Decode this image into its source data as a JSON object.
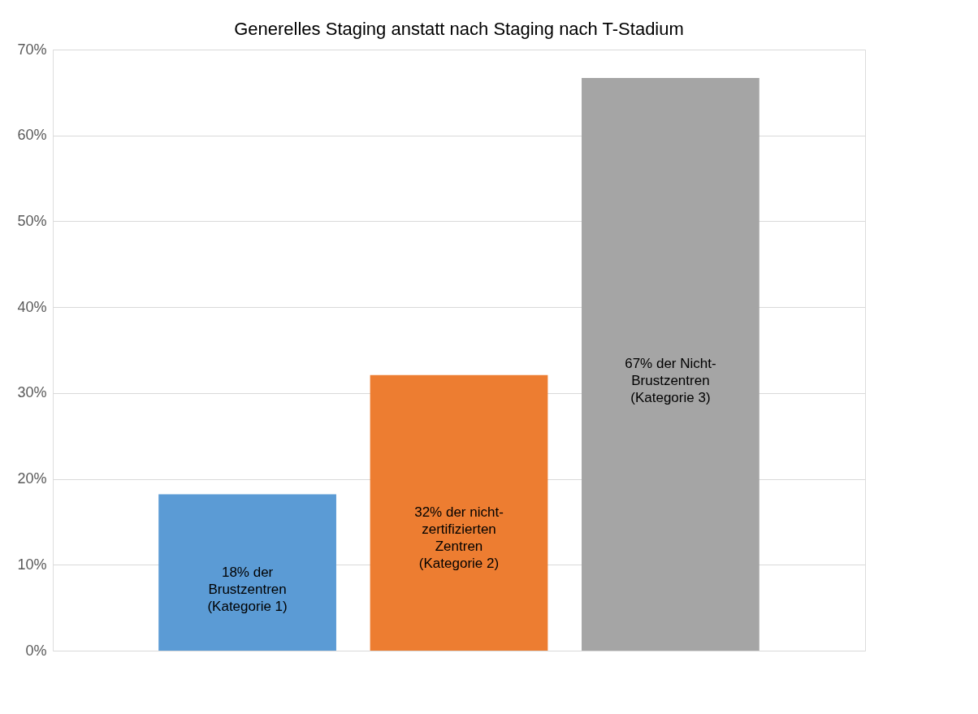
{
  "chart_data": {
    "type": "bar",
    "title": "Generelles Staging anstatt nach Staging nach T-Stadium",
    "categories": [
      null,
      null,
      null
    ],
    "values": [
      18.2,
      32.1,
      66.7
    ],
    "colors": [
      "#5b9bd5",
      "#ed7d31",
      "#a5a5a5"
    ],
    "ylim": [
      0,
      70
    ],
    "yticks": [
      {
        "value": 0,
        "label": "0%"
      },
      {
        "value": 10,
        "label": "10%"
      },
      {
        "value": 20,
        "label": "20%"
      },
      {
        "value": 30,
        "label": "30%"
      },
      {
        "value": 40,
        "label": "40%"
      },
      {
        "value": 50,
        "label": "50%"
      },
      {
        "value": 60,
        "label": "60%"
      },
      {
        "value": 70,
        "label": "70%"
      }
    ],
    "annotations": [
      "18% der\nBrustzentren\n(Kategorie 1)",
      "32% der nicht-\nzertifizierten\nZentren\n(Kategorie 2)",
      "67% der Nicht-\nBrustzentren\n(Kategorie 3)"
    ],
    "grid": "y",
    "tick_labels": "y"
  }
}
